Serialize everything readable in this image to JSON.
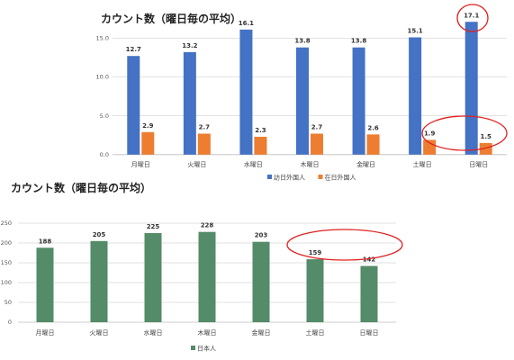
{
  "chart_data": [
    {
      "type": "bar",
      "title": "カウント数（曜日毎の平均）",
      "categories": [
        "月曜日",
        "火曜日",
        "水曜日",
        "木曜日",
        "金曜日",
        "土曜日",
        "日曜日"
      ],
      "series": [
        {
          "name": "訪日外国人",
          "color": "#4472c4",
          "values": [
            12.7,
            13.2,
            16.1,
            13.8,
            13.8,
            15.1,
            17.1
          ]
        },
        {
          "name": "在日外国人",
          "color": "#ed7d31",
          "values": [
            2.9,
            2.7,
            2.3,
            2.7,
            2.6,
            1.9,
            1.5
          ]
        }
      ],
      "ylim": [
        0,
        17.5
      ],
      "yticks": [
        "0.0",
        "5.0",
        "10.0",
        "15.0"
      ],
      "grid": true,
      "legend": "bottom",
      "annotations": [
        "red ellipse around 訪日外国人 日曜日 value 17.1",
        "red ellipse around 在日外国人 土曜日 and 日曜日 values"
      ]
    },
    {
      "type": "bar",
      "title": "カウント数（曜日毎の平均）",
      "categories": [
        "月曜日",
        "火曜日",
        "水曜日",
        "木曜日",
        "金曜日",
        "土曜日",
        "日曜日"
      ],
      "series": [
        {
          "name": "日本人",
          "color": "#548b68",
          "values": [
            188,
            205,
            225,
            228,
            203,
            159,
            142
          ]
        }
      ],
      "ylim": [
        0,
        250
      ],
      "yticks": [
        "0",
        "50",
        "100",
        "150",
        "200",
        "250"
      ],
      "grid": true,
      "legend": "bottom",
      "annotations": [
        "red ellipse around 土曜日 and 日曜日 values"
      ]
    }
  ]
}
